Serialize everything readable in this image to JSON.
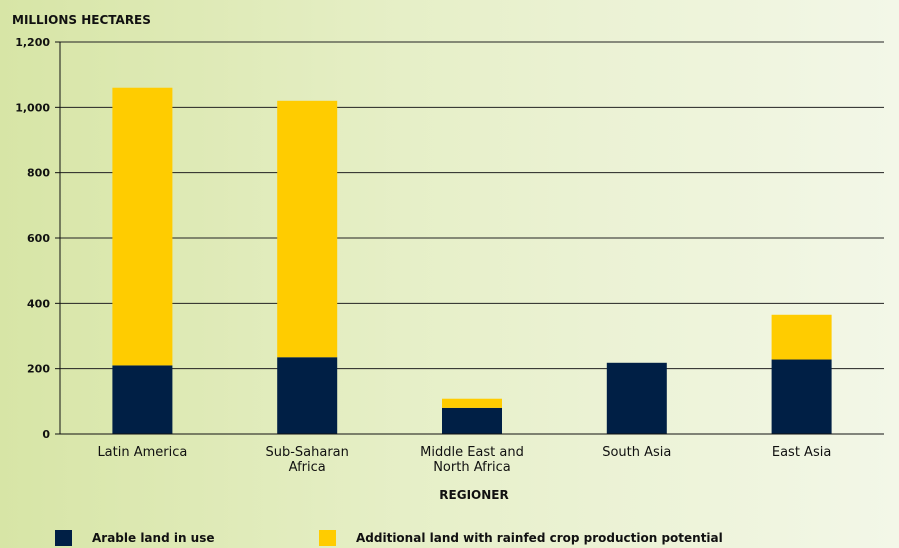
{
  "chart_data": {
    "type": "bar",
    "stacked": true,
    "y_unit_label": "MILLIONS HECTARES",
    "xlabel": "REGIONER",
    "ylim": [
      0,
      1200
    ],
    "yticks": [
      0,
      200,
      400,
      600,
      800,
      1000,
      1200
    ],
    "ytick_labels": [
      "0",
      "200",
      "400",
      "600",
      "800",
      "1,000",
      "1,200"
    ],
    "grid": true,
    "legend_placement": "bottom",
    "categories": [
      "Latin America",
      "Sub-Saharan Africa",
      "Middle East and North Africa",
      "South Asia",
      "East Asia"
    ],
    "category_label_lines": [
      [
        "Latin America"
      ],
      [
        "Sub-Saharan",
        "Africa"
      ],
      [
        "Middle East and",
        "North Africa"
      ],
      [
        "South Asia"
      ],
      [
        "East Asia"
      ]
    ],
    "series": [
      {
        "name": "Arable land in use",
        "color": "#001f45",
        "values": [
          210,
          235,
          80,
          218,
          228
        ]
      },
      {
        "name": "Additional land with rainfed crop production potential",
        "color": "#ffcc00",
        "values": [
          850,
          785,
          28,
          0,
          137
        ]
      }
    ]
  }
}
